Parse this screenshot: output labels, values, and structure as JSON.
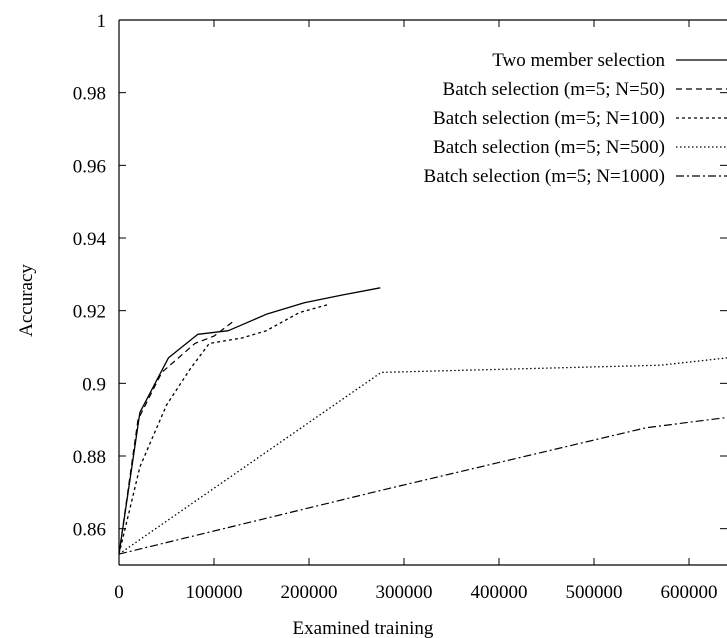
{
  "chart_data": {
    "type": "line",
    "xlabel": "Examined training",
    "ylabel": "Accuracy",
    "xlim": [
      0,
      640000
    ],
    "ylim": [
      0.85,
      1.0
    ],
    "x_ticks": [
      0,
      100000,
      200000,
      300000,
      400000,
      500000,
      600000
    ],
    "x_tick_labels": [
      "0",
      "100000",
      "200000",
      "300000",
      "400000",
      "500000",
      "600000"
    ],
    "y_ticks": [
      0.86,
      0.88,
      0.9,
      0.92,
      0.94,
      0.96,
      0.98,
      1.0
    ],
    "y_tick_labels": [
      "0.86",
      "0.88",
      "0.9",
      "0.92",
      "0.94",
      "0.96",
      "0.98",
      "1"
    ],
    "grid": false,
    "legend_position": "top-right",
    "series": [
      {
        "name": "Two member selection",
        "style": "solid",
        "points": [
          [
            0,
            0.853
          ],
          [
            22000,
            0.892
          ],
          [
            52000,
            0.907
          ],
          [
            83000,
            0.9135
          ],
          [
            115000,
            0.9145
          ],
          [
            155000,
            0.919
          ],
          [
            195000,
            0.9222
          ],
          [
            235000,
            0.9243
          ],
          [
            275000,
            0.9263
          ]
        ]
      },
      {
        "name": "Batch selection (m=5; N=50)",
        "style": "dashed",
        "points": [
          [
            0,
            0.853
          ],
          [
            20000,
            0.89
          ],
          [
            45000,
            0.903
          ],
          [
            80000,
            0.911
          ],
          [
            100000,
            0.913
          ],
          [
            120000,
            0.917
          ]
        ]
      },
      {
        "name": "Batch selection (m=5; N=100)",
        "style": "dotted-dense",
        "points": [
          [
            0,
            0.853
          ],
          [
            22000,
            0.877
          ],
          [
            50000,
            0.894
          ],
          [
            75000,
            0.904
          ],
          [
            95000,
            0.911
          ],
          [
            130000,
            0.9125
          ],
          [
            155000,
            0.9145
          ],
          [
            190000,
            0.9195
          ],
          [
            222000,
            0.9218
          ]
        ]
      },
      {
        "name": "Batch selection (m=5; N=500)",
        "style": "dotted",
        "points": [
          [
            0,
            0.853
          ],
          [
            276000,
            0.903
          ],
          [
            570000,
            0.905
          ],
          [
            640000,
            0.907
          ]
        ]
      },
      {
        "name": "Batch selection (m=5; N=1000)",
        "style": "dash-dot",
        "points": [
          [
            0,
            0.853
          ],
          [
            280000,
            0.8708
          ],
          [
            555000,
            0.8878
          ],
          [
            640000,
            0.8906
          ]
        ]
      }
    ]
  }
}
